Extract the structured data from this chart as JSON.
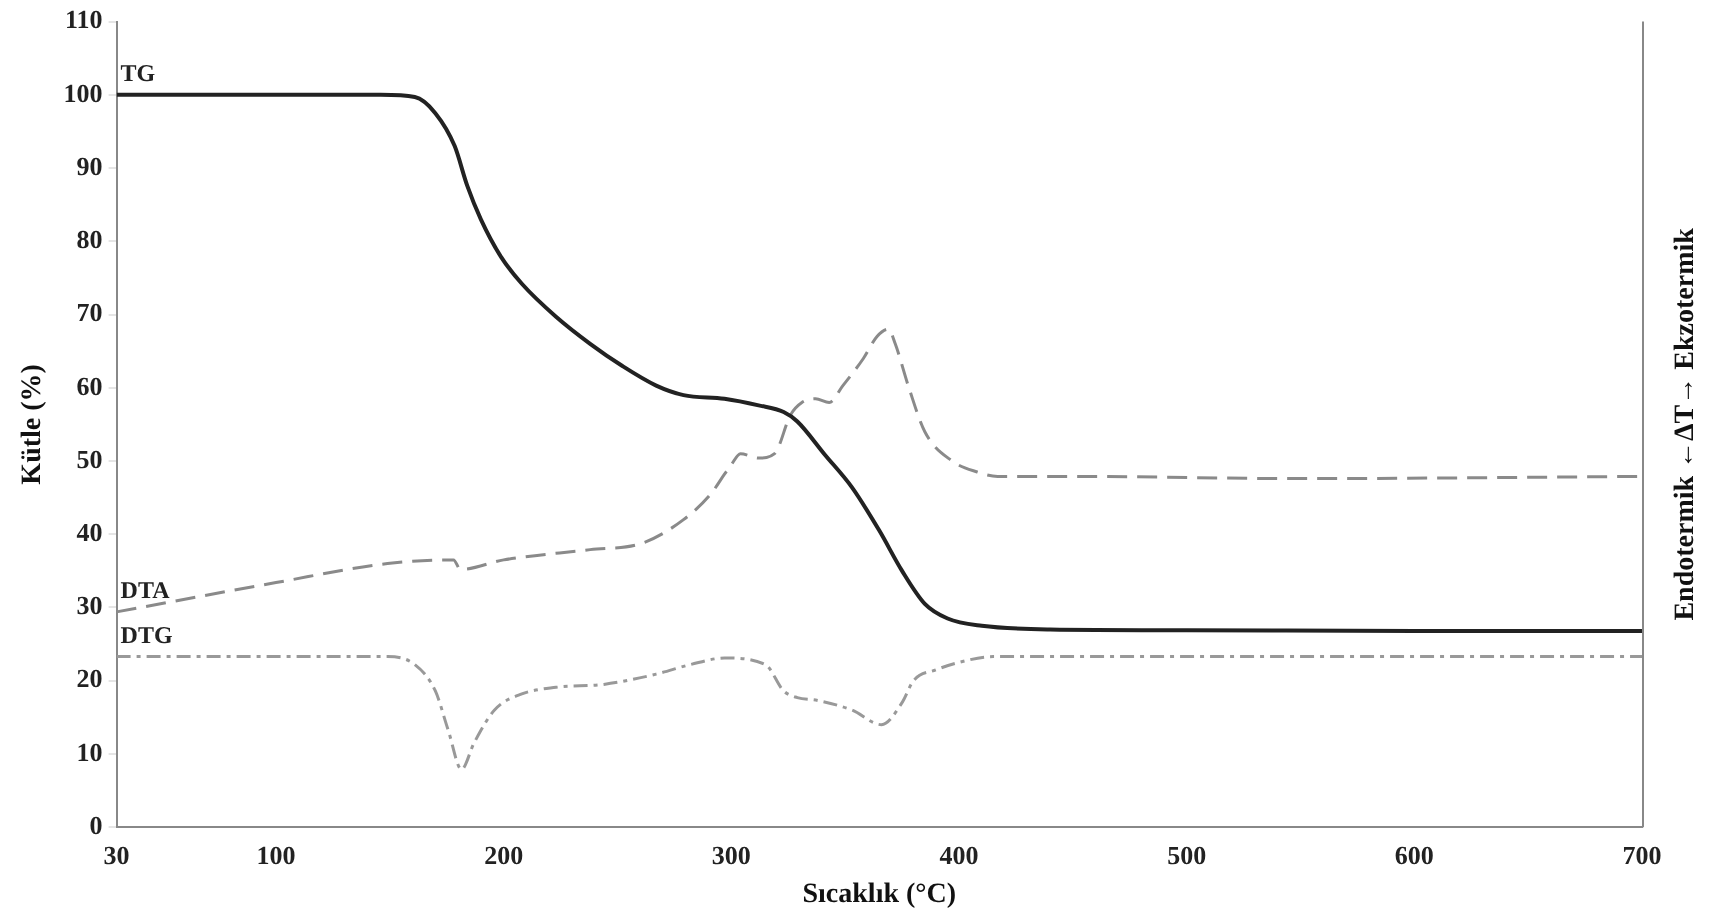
{
  "chart_data": {
    "type": "line",
    "xlabel": "Sıcaklık (°C)",
    "ylabel": "Kütle (%)",
    "y2label": "Endotermik ←ΔT→ Ekzotermik",
    "xlim": [
      30,
      700
    ],
    "xticks": [
      30,
      100,
      200,
      300,
      400,
      500,
      600,
      700
    ],
    "ylim": [
      0,
      110
    ],
    "yticks": [
      0,
      10,
      20,
      30,
      40,
      50,
      60,
      70,
      80,
      90,
      100,
      110
    ],
    "grid": false,
    "legend": false,
    "marker": "none",
    "series": [
      {
        "name": "TG",
        "color": "#222222",
        "line_style": "solid",
        "x": [
          30,
          100,
          146,
          161,
          170,
          178.5,
          184,
          190,
          199,
          208,
          223,
          238,
          252,
          267,
          279,
          297,
          312,
          323,
          329,
          341,
          353,
          365,
          375,
          385,
          395,
          410,
          440,
          500,
          600,
          700
        ],
        "values": [
          100,
          100,
          100,
          99.7,
          97.5,
          93,
          87.6,
          83,
          77.8,
          74.2,
          69.7,
          66,
          63,
          60.3,
          59,
          58.5,
          57.6,
          56.7,
          55.4,
          50.9,
          46.4,
          40.5,
          35,
          30.5,
          28.5,
          27.5,
          27,
          26.9,
          26.8,
          26.8
        ]
      },
      {
        "name": "DTA",
        "color": "#8a8a8a",
        "line_style": "dashed",
        "x": [
          30,
          100,
          149,
          178,
          181,
          200,
          238,
          261,
          279,
          291,
          297,
          300,
          304,
          312,
          319,
          326,
          331,
          337,
          343,
          349,
          358,
          364,
          369,
          372,
          378,
          385,
          397,
          408,
          417,
          450,
          550,
          700
        ],
        "values": [
          29.4,
          33.4,
          36,
          36.5,
          35.2,
          36.5,
          37.9,
          38.8,
          42,
          45.5,
          48.2,
          49.5,
          51,
          50.4,
          51,
          56.3,
          58,
          58.5,
          58,
          60.3,
          64,
          67,
          68,
          66,
          60,
          54,
          50,
          48.5,
          47.9,
          47.9,
          47.6,
          47.9
        ]
      },
      {
        "name": "DTG",
        "color": "#999999",
        "line_style": "dotted",
        "x": [
          30,
          149,
          161,
          170,
          175.6,
          181.5,
          187,
          196,
          208,
          223,
          244,
          267,
          282,
          297,
          315,
          323,
          329,
          338,
          353,
          366,
          375,
          380,
          390,
          400,
          415,
          700
        ],
        "values": [
          23.3,
          23.3,
          22.2,
          18.6,
          13.3,
          7.9,
          11.5,
          16,
          18.2,
          19.1,
          19.5,
          20.9,
          22.2,
          23.1,
          22.2,
          18.6,
          17.7,
          17.3,
          16,
          14,
          17,
          20,
          21.5,
          22.5,
          23.3,
          23.3
        ]
      }
    ]
  }
}
